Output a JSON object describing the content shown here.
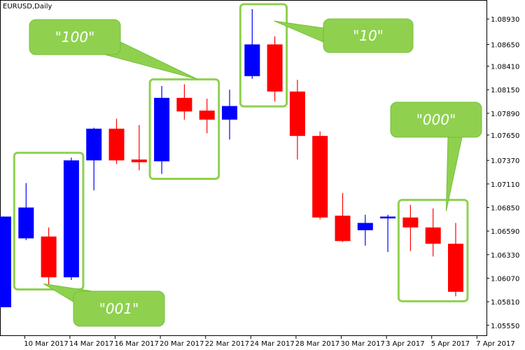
{
  "chart_title": "EURUSD,Daily",
  "chart_data": {
    "type": "candlestick",
    "symbol": "EURUSD",
    "timeframe": "Daily",
    "title": "EURUSD,Daily",
    "ylim": [
      1.0544,
      1.0914
    ],
    "y_ticks": [
      "1.08930",
      "1.08650",
      "1.08410",
      "1.08150",
      "1.07890",
      "1.07650",
      "1.07370",
      "1.07110",
      "1.06850",
      "1.06590",
      "1.06330",
      "1.06070",
      "1.05810",
      "1.05550"
    ],
    "x_tick_labels": [
      "10 Mar 2017",
      "14 Mar 2017",
      "16 Mar 2017",
      "20 Mar 2017",
      "22 Mar 2017",
      "24 Mar 2017",
      "28 Mar 2017",
      "30 Mar 2017",
      "3 Apr 2017",
      "5 Apr 2017",
      "7 Apr 2017"
    ],
    "candles": [
      {
        "open": 1.0575,
        "high": 1.0675,
        "low": 1.0575,
        "close": 1.0675
      },
      {
        "open": 1.0651,
        "high": 1.0712,
        "low": 1.0649,
        "close": 1.0685
      },
      {
        "open": 1.0653,
        "high": 1.0663,
        "low": 1.06,
        "close": 1.0608
      },
      {
        "open": 1.0608,
        "high": 1.074,
        "low": 1.0605,
        "close": 1.0737
      },
      {
        "open": 1.0737,
        "high": 1.0773,
        "low": 1.0704,
        "close": 1.0772
      },
      {
        "open": 1.0772,
        "high": 1.0783,
        "low": 1.0733,
        "close": 1.0737
      },
      {
        "open": 1.0738,
        "high": 1.0776,
        "low": 1.0726,
        "close": 1.0735
      },
      {
        "open": 1.0736,
        "high": 1.0819,
        "low": 1.0722,
        "close": 1.0806
      },
      {
        "open": 1.0806,
        "high": 1.0821,
        "low": 1.0782,
        "close": 1.0791
      },
      {
        "open": 1.0792,
        "high": 1.0805,
        "low": 1.0767,
        "close": 1.0782
      },
      {
        "open": 1.0782,
        "high": 1.0815,
        "low": 1.076,
        "close": 1.0797
      },
      {
        "open": 1.083,
        "high": 1.0904,
        "low": 1.0827,
        "close": 1.0865
      },
      {
        "open": 1.0865,
        "high": 1.0874,
        "low": 1.0802,
        "close": 1.0813
      },
      {
        "open": 1.0813,
        "high": 1.0826,
        "low": 1.0738,
        "close": 1.0764
      },
      {
        "open": 1.0764,
        "high": 1.0769,
        "low": 1.0672,
        "close": 1.0674
      },
      {
        "open": 1.0676,
        "high": 1.0701,
        "low": 1.0647,
        "close": 1.0648
      },
      {
        "open": 1.066,
        "high": 1.0677,
        "low": 1.0643,
        "close": 1.0668
      },
      {
        "open": 1.0673,
        "high": 1.0677,
        "low": 1.0636,
        "close": 1.0675
      },
      {
        "open": 1.0674,
        "high": 1.0688,
        "low": 1.0637,
        "close": 1.0663
      },
      {
        "open": 1.0663,
        "high": 1.0684,
        "low": 1.0631,
        "close": 1.0645
      },
      {
        "open": 1.0645,
        "high": 1.0668,
        "low": 1.0587,
        "close": 1.0592
      }
    ],
    "colors": {
      "bull": "#0000ff",
      "bear": "#ff0000",
      "callout": "#8fd14f",
      "callout_edge": "#73bf36"
    },
    "callouts": [
      {
        "label": "\"100\"",
        "group": [
          7,
          8,
          9
        ]
      },
      {
        "label": "\"10\"",
        "group": [
          11,
          12
        ]
      },
      {
        "label": "\"001\"",
        "group": [
          1,
          2,
          3
        ]
      },
      {
        "label": "\"000\"",
        "group": [
          18,
          19,
          20
        ]
      }
    ]
  }
}
